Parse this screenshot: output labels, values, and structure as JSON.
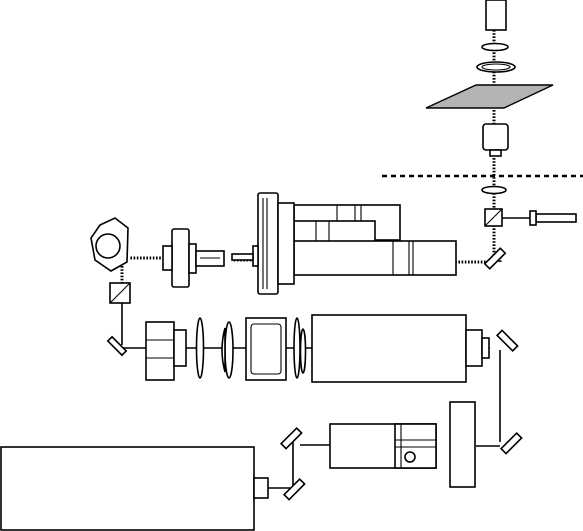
{
  "diagram": {
    "type": "optical-setup-schematic",
    "colors": {
      "line": "#000000",
      "background": "#ffffff",
      "sample_plate": "#b4b4b4"
    },
    "icons": [
      "camera-icon",
      "lens-icon",
      "sample-plate-icon",
      "objective-icon",
      "beam-splitter-icon",
      "mirror-icon",
      "laser-icon",
      "spectrograph-icon"
    ]
  }
}
